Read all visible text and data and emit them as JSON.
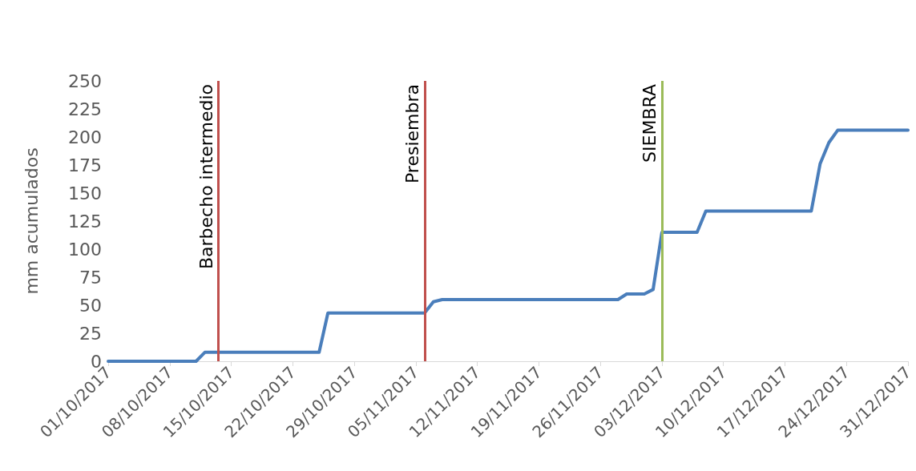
{
  "chart_data": {
    "type": "line",
    "ylabel": "mm acumulados",
    "x": [
      "2017-10-01",
      "2017-10-11",
      "2017-10-12",
      "2017-10-25",
      "2017-10-26",
      "2017-11-06",
      "2017-11-07",
      "2017-11-08",
      "2017-11-28",
      "2017-11-29",
      "2017-12-01",
      "2017-12-02",
      "2017-12-03",
      "2017-12-07",
      "2017-12-08",
      "2017-12-20",
      "2017-12-21",
      "2017-12-22",
      "2017-12-23",
      "2017-12-31"
    ],
    "series": [
      {
        "color": "#4a7ebb",
        "values": [
          0,
          0,
          8,
          8,
          43,
          43,
          53,
          55,
          55,
          60,
          60,
          64,
          115,
          115,
          134,
          134,
          176,
          195,
          206,
          206
        ]
      }
    ],
    "xlim": [
      "2017-10-01",
      "2017-12-31"
    ],
    "xticks": [
      {
        "value": "2017-10-01",
        "label": "01/10/2017"
      },
      {
        "value": "2017-10-08",
        "label": "08/10/2017"
      },
      {
        "value": "2017-10-15",
        "label": "15/10/2017"
      },
      {
        "value": "2017-10-22",
        "label": "22/10/2017"
      },
      {
        "value": "2017-10-29",
        "label": "29/10/2017"
      },
      {
        "value": "2017-11-05",
        "label": "05/11/2017"
      },
      {
        "value": "2017-11-12",
        "label": "12/11/2017"
      },
      {
        "value": "2017-11-19",
        "label": "19/11/2017"
      },
      {
        "value": "2017-11-26",
        "label": "26/11/2017"
      },
      {
        "value": "2017-12-03",
        "label": "03/12/2017"
      },
      {
        "value": "2017-12-10",
        "label": "10/12/2017"
      },
      {
        "value": "2017-12-17",
        "label": "17/12/2017"
      },
      {
        "value": "2017-12-24",
        "label": "24/12/2017"
      },
      {
        "value": "2017-12-31",
        "label": "31/12/2017"
      }
    ],
    "ylim": [
      0,
      250
    ],
    "yticks": [
      0,
      25,
      50,
      75,
      100,
      125,
      150,
      175,
      200,
      225,
      250
    ],
    "ref_lines": [
      {
        "axis": "x",
        "value": "2017-10-13T12:00",
        "label": "Barbecho intermedio",
        "color": "#c0504d"
      },
      {
        "axis": "x",
        "value": "2017-11-06",
        "label": "Presiembra",
        "color": "#c0504d"
      },
      {
        "axis": "x",
        "value": "2017-12-03",
        "label": "SIEMBRA",
        "color": "#9bbb59"
      }
    ],
    "grid": false,
    "marker": "none",
    "line_style": "solid"
  }
}
